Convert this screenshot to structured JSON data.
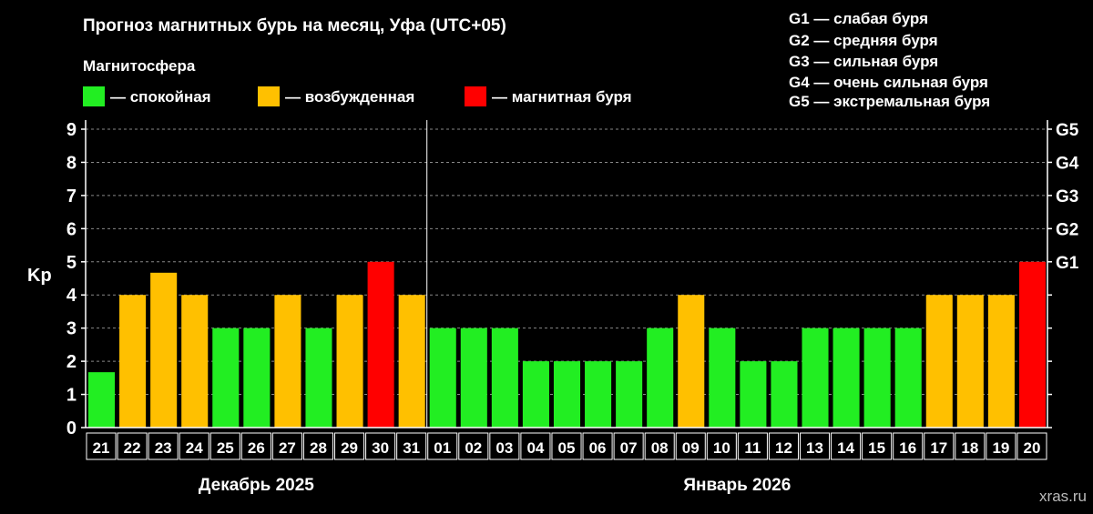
{
  "title": "Прогноз магнитных бурь на месяц, Уфа (UTC+05)",
  "legend_title": "Магнитосфера",
  "legend": [
    {
      "label": "— спокойная",
      "color": "#22ee22"
    },
    {
      "label": "— возбужденная",
      "color": "#ffc000"
    },
    {
      "label": "— магнитная буря",
      "color": "#ff0000"
    }
  ],
  "storm_scale": [
    "G1 — слабая буря",
    "G2 — средняя буря",
    "G3 — сильная буря",
    "G4 — очень сильная буря",
    "G5 — экстремальная буря"
  ],
  "watermark": "xras.ru",
  "chart_data": {
    "type": "bar",
    "ylabel": "Kp",
    "ylim": [
      0,
      9
    ],
    "yticks": [
      0,
      1,
      2,
      3,
      4,
      5,
      6,
      7,
      8,
      9
    ],
    "y2ticks": [
      {
        "value": 5,
        "label": "G1"
      },
      {
        "value": 6,
        "label": "G2"
      },
      {
        "value": 7,
        "label": "G3"
      },
      {
        "value": 8,
        "label": "G4"
      },
      {
        "value": 9,
        "label": "G5"
      }
    ],
    "grid": true,
    "categories": [
      "21",
      "22",
      "23",
      "24",
      "25",
      "26",
      "27",
      "28",
      "29",
      "30",
      "31",
      "01",
      "02",
      "03",
      "04",
      "05",
      "06",
      "07",
      "08",
      "09",
      "10",
      "11",
      "12",
      "13",
      "14",
      "15",
      "16",
      "17",
      "18",
      "19",
      "20"
    ],
    "values": [
      1.67,
      4,
      4.67,
      4,
      3,
      3,
      4,
      3,
      4,
      5,
      4,
      3,
      3,
      3,
      2,
      2,
      2,
      2,
      3,
      4,
      3,
      2,
      2,
      3,
      3,
      3,
      3,
      4,
      4,
      4,
      5
    ],
    "colors": {
      "quiet": "#22ee22",
      "active": "#ffc000",
      "storm": "#ff0000"
    },
    "groups": [
      {
        "label": "Декабрь 2025",
        "count": 11
      },
      {
        "label": "Январь 2026",
        "count": 20
      }
    ]
  }
}
